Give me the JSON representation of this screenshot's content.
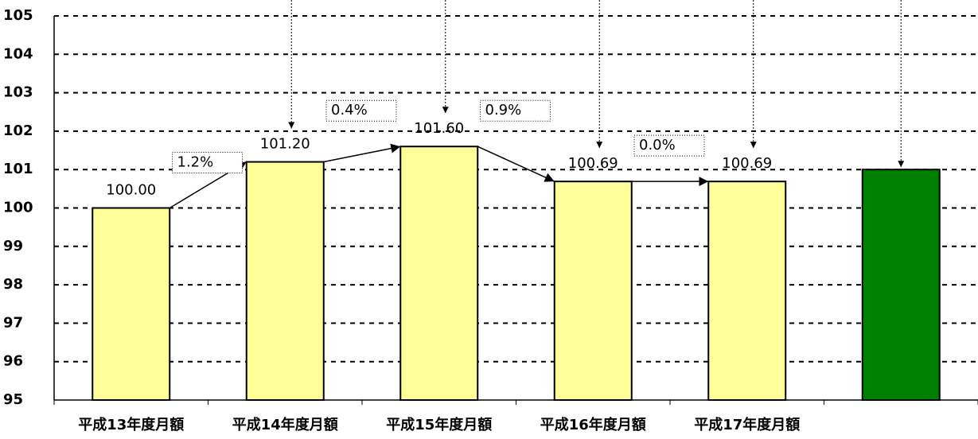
{
  "chart_data": {
    "type": "bar",
    "categories": [
      "平成13年度月額",
      "平成14年度月額",
      "平成15年度月額",
      "平成16年度月額",
      "平成17年度月額",
      null
    ],
    "values": [
      100.0,
      101.2,
      101.6,
      100.69,
      100.69,
      101.0
    ],
    "value_labels": [
      "100.00",
      "101.20",
      "101.60",
      "100.69",
      "100.69",
      null
    ],
    "colors": [
      "#ffff99",
      "#ffff99",
      "#ffff99",
      "#ffff99",
      "#ffff99",
      "#008000"
    ],
    "annotations": [
      "1.2%",
      "0.4%",
      "0.9%",
      "0.0%"
    ],
    "ylim": [
      95,
      105
    ],
    "yticks": [
      95,
      96,
      97,
      98,
      99,
      100,
      101,
      102,
      103,
      104,
      105
    ],
    "grid": true
  }
}
